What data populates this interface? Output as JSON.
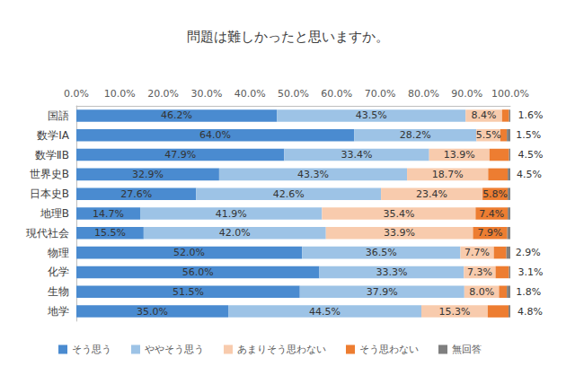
{
  "chart_data": {
    "type": "bar",
    "title": "問題は難しかったと思いますか。",
    "orientation": "horizontal",
    "stacked": true,
    "data_labels": true,
    "grid": false,
    "legend": "bottom",
    "categories": [
      "国語",
      "数学ⅠA",
      "数学ⅡB",
      "世界史B",
      "日本史B",
      "地理B",
      "現代社会",
      "物理",
      "化学",
      "生物",
      "地学"
    ],
    "xlim": [
      0,
      100
    ],
    "xticks": [
      {
        "value": 0,
        "label": "0.0%"
      },
      {
        "value": 10,
        "label": "10.0%"
      },
      {
        "value": 20,
        "label": "20.0%"
      },
      {
        "value": 30,
        "label": "30.0%"
      },
      {
        "value": 40,
        "label": "40.0%"
      },
      {
        "value": 50,
        "label": "50.0%"
      },
      {
        "value": 60,
        "label": "60.0%"
      },
      {
        "value": 70,
        "label": "70.0%"
      },
      {
        "value": 80,
        "label": "80.0%"
      },
      {
        "value": 90,
        "label": "90.0%"
      },
      {
        "value": 100,
        "label": "100.0%"
      }
    ],
    "series": [
      {
        "name": "そう思う",
        "color": "#4a8bd0",
        "values": [
          46.2,
          64.0,
          47.9,
          32.9,
          27.6,
          14.7,
          15.5,
          52.0,
          56.0,
          51.5,
          35.0
        ],
        "value_labels": [
          "46.2%",
          "64.0%",
          "47.9%",
          "32.9%",
          "27.6%",
          "14.7%",
          "15.5%",
          "52.0%",
          "56.0%",
          "51.5%",
          "35.0%"
        ]
      },
      {
        "name": "ややそう思う",
        "color": "#9dc3e6",
        "values": [
          43.5,
          28.2,
          33.4,
          43.3,
          42.6,
          41.9,
          42.0,
          36.5,
          33.3,
          37.9,
          44.5
        ],
        "value_labels": [
          "43.5%",
          "28.2%",
          "33.4%",
          "43.3%",
          "42.6%",
          "41.9%",
          "42.0%",
          "36.5%",
          "33.3%",
          "37.9%",
          "44.5%"
        ]
      },
      {
        "name": "あまりそう思わない",
        "color": "#f8cbad",
        "values": [
          8.4,
          5.5,
          13.9,
          18.7,
          23.4,
          35.4,
          33.9,
          7.7,
          7.3,
          8.0,
          15.3
        ],
        "value_labels": [
          "8.4%",
          "5.5%",
          "13.9%",
          "18.7%",
          "23.4%",
          "35.4%",
          "33.9%",
          "7.7%",
          "7.3%",
          "8.0%",
          "15.3%"
        ]
      },
      {
        "name": "そう思わない",
        "color": "#ed7d31",
        "values": [
          1.6,
          1.5,
          4.5,
          4.5,
          5.8,
          7.4,
          7.9,
          2.9,
          3.1,
          1.8,
          4.8
        ],
        "value_labels": [
          "1.6%",
          "1.5%",
          "4.5%",
          "4.5%",
          "5.8%",
          "7.4%",
          "7.9%",
          "2.9%",
          "3.1%",
          "1.8%",
          "4.8%"
        ]
      },
      {
        "name": "無回答",
        "color": "#7f7f7f",
        "values": [
          0.3,
          0.8,
          0.3,
          0.6,
          0.6,
          0.6,
          0.7,
          0.9,
          0.3,
          0.8,
          0.4
        ]
      }
    ]
  }
}
